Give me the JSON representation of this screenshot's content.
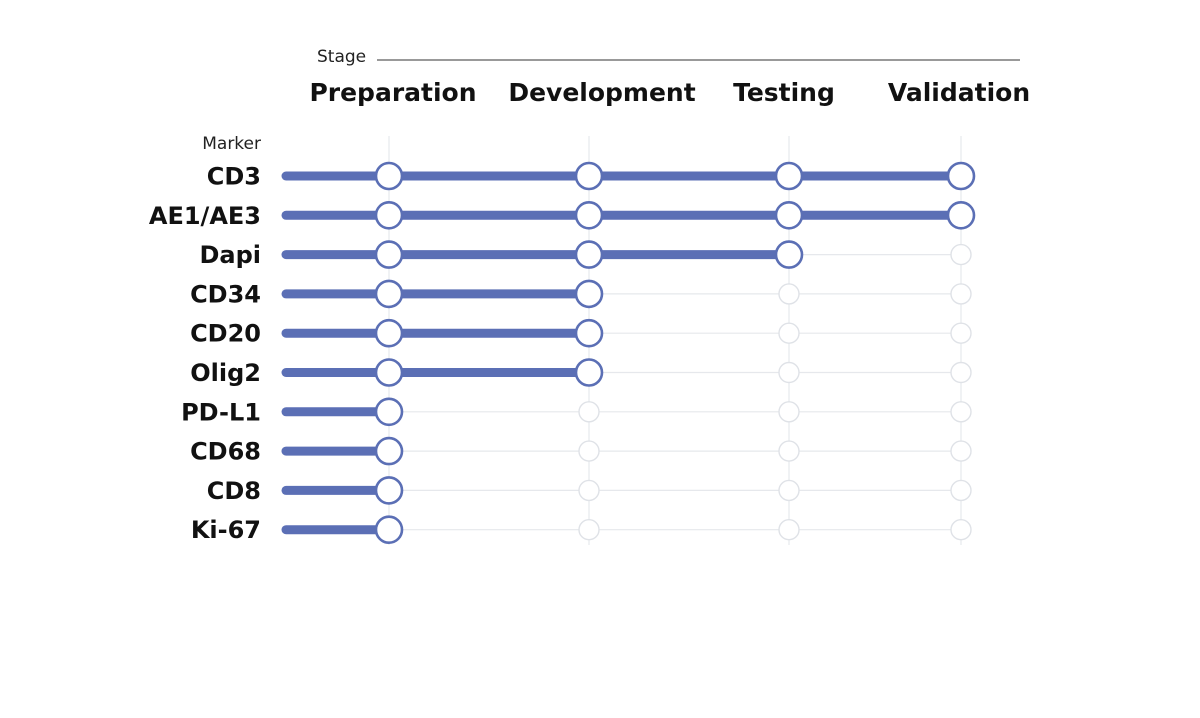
{
  "chart_data": {
    "type": "progress-matrix",
    "stage_axis_title": "Stage",
    "marker_axis_title": "Marker",
    "stages": [
      "Preparation",
      "Development",
      "Testing",
      "Validation"
    ],
    "markers": [
      {
        "name": "CD3",
        "completed_stages": 4
      },
      {
        "name": "AE1/AE3",
        "completed_stages": 4
      },
      {
        "name": "Dapi",
        "completed_stages": 3
      },
      {
        "name": "CD34",
        "completed_stages": 2
      },
      {
        "name": "CD20",
        "completed_stages": 2
      },
      {
        "name": "Olig2",
        "completed_stages": 2
      },
      {
        "name": "PD-L1",
        "completed_stages": 1
      },
      {
        "name": "CD68",
        "completed_stages": 1
      },
      {
        "name": "CD8",
        "completed_stages": 1
      },
      {
        "name": "Ki-67",
        "completed_stages": 1
      }
    ],
    "colors": {
      "progress": "#5b6fb5",
      "grid": "#e6e8ec",
      "inactive_node": "#dfe2e7"
    }
  }
}
